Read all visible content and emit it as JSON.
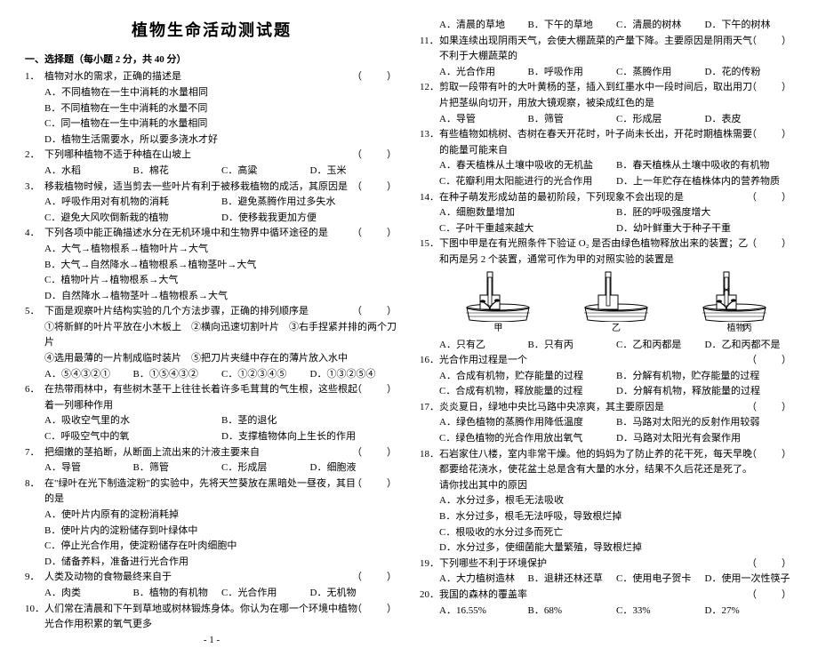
{
  "title": "植物生命活动测试题",
  "section": "一、选择题（每小题 2 分，共 40 分）",
  "pageNum": "- 1 -",
  "q": [
    {
      "n": "1．",
      "stem": "植物对水的需求，正确的描述是",
      "opts": [
        "A．不同植物在一生中消耗的水量相同",
        "B．不同植物在一生中消耗的水量不同",
        "C．同一植物在一生中消耗的水量相同",
        "D．植物生活需要水，所以要多浇水才好"
      ],
      "cols": 1,
      "paren": true
    },
    {
      "n": "2．",
      "stem": "下列哪种植物不适于种植在山坡上",
      "opts": [
        "A．水稻",
        "B．棉花",
        "C．高粱",
        "D．玉米"
      ],
      "cols": 4,
      "paren": true
    },
    {
      "n": "3．",
      "stem": "移栽植物时候，适当剪去一些叶片有利于被移栽植物的成活，其原因是",
      "opts": [
        "A．呼吸作用对有机物的消耗",
        "B．避免蒸腾作用过多失水",
        "C．避免大风吹倒新栽的植物",
        "D．使移栽我更加方便"
      ],
      "cols": 2,
      "paren": true
    },
    {
      "n": "4．",
      "stem": "下列各项中能正确描述水分在无机环境中和生物界中循环途径的是",
      "opts": [
        "A．大气→植物根系→植物叶片→大气",
        "B．大气→自然降水→植物根系→植物茎叶→大气",
        "C．植物叶片→植物根系→大气",
        "D．自然降水→植物茎叶→植物根系→大气"
      ],
      "cols": 1,
      "paren": true
    },
    {
      "n": "5．",
      "stem": "下面是观察叶片结构实验的几个方法步骤，正确的排列顺序是",
      "steps": [
        "①将新鲜的叶片平放在小木板上　②横向迅速切割叶片　③右手捏紧并排的两个刀片",
        "④选用最薄的一片制成临时装片　⑤把刀片夹缝中存在的薄片放入水中"
      ],
      "opts": [
        "A．⑤④③②①",
        "B．①⑤④③②",
        "C．①②③④⑤",
        "D．①③②⑤④"
      ],
      "cols": 4,
      "paren": true
    },
    {
      "n": "6．",
      "stem": "在热带雨林中，有些树木茎干上往往长着许多毛茸茸的气生根，这些根起着一列哪种作用",
      "opts": [
        "A．吸收空气里的水",
        "B．茎的退化",
        "C．呼吸空气中的氧",
        "D．支撑植物体向上生长的作用"
      ],
      "cols": 2,
      "paren": true
    },
    {
      "n": "7．",
      "stem": "把细嫩的茎掐断，从断面上流出来的汁液主要来自",
      "opts": [
        "A．导管",
        "B．筛管",
        "C．形成层",
        "D．细胞液"
      ],
      "cols": 4,
      "paren": true
    },
    {
      "n": "8．",
      "stem": "在\"绿叶在光下制造淀粉\"的实验中，先将天竺葵放在黑暗处一昼夜，其目的是",
      "opts": [
        "A．使叶片内原有的淀粉消耗掉",
        "B．使叶片内的淀粉储存到叶绿体中",
        "C．停止光合作用，使淀粉储存在叶肉细胞中",
        "D．储备养料，准备进行光合作用"
      ],
      "cols": 1,
      "paren": true
    },
    {
      "n": "9．",
      "stem": "人类及动物的食物最终来自于",
      "opts": [
        "A．肉类",
        "B．植物的有机物",
        "C．光合作用",
        "D．无机物"
      ],
      "cols": 4,
      "paren": true
    },
    {
      "n": "10．",
      "stem": "人们常在清晨和下午到草地或树林锻炼身体。你认为在哪一个环境中植物光合作用积累的氧气更多",
      "opts": [
        "A．清晨的草地",
        "B．下午的草地",
        "C．清晨的树林",
        "D．下午的树林"
      ],
      "cols": 4,
      "paren": true
    },
    {
      "n": "11．",
      "stem": "如果连续出现阴雨天气，会使大棚蔬菜的产量下降。主要原因是阴雨天气不利于大棚蔬菜的",
      "opts": [
        "A．光合作用",
        "B．呼吸作用",
        "C．蒸腾作用",
        "D．花的传粉"
      ],
      "cols": 4,
      "paren": true
    },
    {
      "n": "12．",
      "stem": "剪取一段带有叶的大叶黄杨的茎，插入到红墨水中一段时间后，取出用刀片把茎纵向切开，用放大镜观察，被染成红色的是",
      "opts": [
        "A．导管",
        "B．筛管",
        "C．形成层",
        "D．表皮"
      ],
      "cols": 4,
      "paren": true
    },
    {
      "n": "13．",
      "stem": "有些植物如桃树、杏树在春天开花时，叶子尚未长出，开花时期植株需要的能量可能来自",
      "opts": [
        "A．春天植株从土壤中吸收的无机盐",
        "B．春天植株从土壤中吸收的有机物",
        "C．花瓣利用太阳能进行的光合作用",
        "D．上一年贮存在植株体内的营养物质"
      ],
      "cols": 2,
      "paren": true
    },
    {
      "n": "14．",
      "stem": "在种子萌发形成幼苗的最初阶段，下列现象不会出现的是",
      "opts": [
        "A．细胞数量增加",
        "B．胚的呼吸强度增大",
        "C．子叶干重越来越大",
        "D．幼叶鲜重大于种子干重"
      ],
      "cols": 2,
      "paren": true
    },
    {
      "n": "15．",
      "stem": "下图中甲是在有光照条件下验证 O₂ 是否由绿色植物释放出来的装置；乙和丙是另 2 个装置，通常可作为甲的对照实验的装置是",
      "opts": [
        "A．只有乙",
        "B．只有丙",
        "C．乙和丙都是",
        "D．乙和丙都不是"
      ],
      "cols": 4,
      "paren": true,
      "hasFig": true
    },
    {
      "n": "16．",
      "stem": "光合作用过程是一个",
      "opts": [
        "A．合成有机物，贮存能量的过程",
        "B．分解有机物，贮存能量的过程",
        "C．合成有机物，释放能量的过程",
        "D．分解有机物，释放能量的过程"
      ],
      "cols": 2,
      "paren": true
    },
    {
      "n": "17．",
      "stem": "炎炎夏日，绿地中央比马路中央凉爽，其主要原因是",
      "opts": [
        "A．绿色植物的蒸腾作用降低温度",
        "B．马路对太阳光的反射作用较弱",
        "C．绿色植物的光合作用放出氧气",
        "D．马路对太阳光有会聚作用"
      ],
      "cols": 2,
      "paren": true
    },
    {
      "n": "18．",
      "stem": "石岩家住八楼，室内非常干燥。他的妈妈为了防止养的花干死，每天早晚都要给花浇水，使花盆土总是含有大量的水分，结果不久后花还是死了。请你找出其中的原因",
      "opts": [
        "A．水分过多，根毛无法吸收",
        "B．水分过多，根毛无法呼吸，导致根烂掉",
        "C．根吸收的水分过多而死亡",
        "D．水分过多，使细菌能大量繁殖，导致根烂掉"
      ],
      "cols": 1,
      "paren": true
    },
    {
      "n": "19．",
      "stem": "下列哪些不利于环境保护",
      "opts": [
        "A．大力植树造林",
        "B．退耕还林还草",
        "C．使用电子贺卡",
        "D．使用一次性筷子"
      ],
      "cols": 4,
      "paren": true
    },
    {
      "n": "20．",
      "stem": "我国的森林的覆盖率",
      "opts": [
        "A．16.55%",
        "B．68%",
        "C．33%",
        "D．27%"
      ],
      "cols": 4,
      "paren": true
    }
  ],
  "figLabels": [
    "甲",
    "乙",
    "丙"
  ],
  "figPlantLabel": "植物"
}
